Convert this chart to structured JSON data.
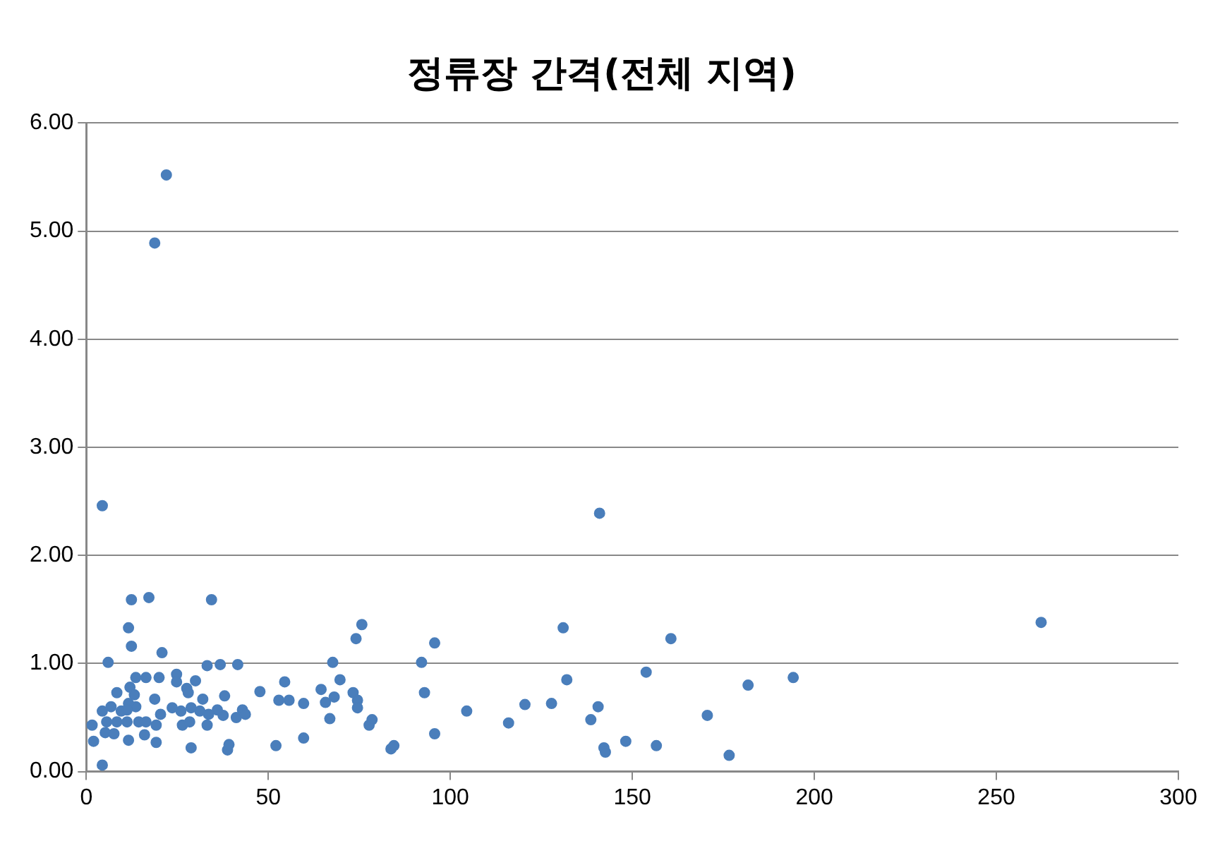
{
  "chart_data": {
    "type": "scatter",
    "title": "정류장 간격(전체 지역)",
    "xlim": [
      0,
      300
    ],
    "xticks": [
      0,
      50,
      100,
      150,
      200,
      250,
      300
    ],
    "ylim": [
      0,
      6
    ],
    "yticks": [
      {
        "value": 0,
        "label": "0.00"
      },
      {
        "value": 1,
        "label": "1.00"
      },
      {
        "value": 2,
        "label": "2.00"
      },
      {
        "value": 3,
        "label": "3.00"
      },
      {
        "value": 4,
        "label": "4.00"
      },
      {
        "value": 5,
        "label": "5.00"
      },
      {
        "value": 6,
        "label": "6.00"
      }
    ],
    "grid": "y",
    "legend": false,
    "marker": "circle",
    "series": [
      {
        "color": "#4a7ebb",
        "x": [
          22.0,
          18.8,
          4.4,
          141,
          262.3,
          12.4,
          17.2,
          34.4,
          11.6,
          12.4,
          20.8,
          6.0,
          33.2,
          36.8,
          41.6,
          54.5,
          47.7,
          52.9,
          38.0,
          30.0,
          24.8,
          24.8,
          20.0,
          16.4,
          13.6,
          12.0,
          8.4,
          1.6,
          4.4,
          2.0,
          11.6,
          16.0,
          19.2,
          28.8,
          38.8,
          39.2,
          52.1,
          27.6,
          28.0,
          32.0,
          37.6,
          36.0,
          42.9,
          43.7,
          41.2,
          31.2,
          28.8,
          26.0,
          23.6,
          20.4,
          18.8,
          19.2,
          13.6,
          11.6,
          9.6,
          6.8,
          4.4,
          5.6,
          8.4,
          11.2,
          14.4,
          16.4,
          5.2,
          7.6,
          13.2,
          26.4,
          28.4,
          33.6,
          33.2,
          11.2,
          55.7,
          59.7,
          59.7,
          64.5,
          65.7,
          68.1,
          67.7,
          69.7,
          66.9,
          73.3,
          74.5,
          74.5,
          75.7,
          74.1,
          77.7,
          78.5,
          83.7,
          84.5,
          92.1,
          92.9,
          95.7,
          95.7,
          104.5,
          131,
          160.6,
          116,
          120.5,
          127.8,
          132,
          140.6,
          138.6,
          142.2,
          142.6,
          148.2,
          156.6,
          153.8,
          170.6,
          176.6,
          181.8,
          194.2
        ],
        "values": [
          5.52,
          4.89,
          2.46,
          2.39,
          1.38,
          1.59,
          1.61,
          1.59,
          1.33,
          1.16,
          1.1,
          1.01,
          0.98,
          0.99,
          0.99,
          0.83,
          0.74,
          0.66,
          0.7,
          0.84,
          0.9,
          0.83,
          0.87,
          0.87,
          0.87,
          0.78,
          0.73,
          0.43,
          0.06,
          0.28,
          0.29,
          0.34,
          0.27,
          0.22,
          0.2,
          0.25,
          0.24,
          0.77,
          0.73,
          0.67,
          0.52,
          0.57,
          0.57,
          0.53,
          0.5,
          0.56,
          0.59,
          0.56,
          0.59,
          0.53,
          0.67,
          0.43,
          0.6,
          0.63,
          0.56,
          0.6,
          0.56,
          0.46,
          0.46,
          0.46,
          0.46,
          0.46,
          0.36,
          0.35,
          0.71,
          0.43,
          0.46,
          0.53,
          0.43,
          0.57,
          0.66,
          0.63,
          0.31,
          0.76,
          0.64,
          0.69,
          1.01,
          0.85,
          0.49,
          0.73,
          0.66,
          0.59,
          1.36,
          1.23,
          0.43,
          0.48,
          0.21,
          0.24,
          1.01,
          0.73,
          1.19,
          0.35,
          0.56,
          1.33,
          1.23,
          0.45,
          0.62,
          0.63,
          0.85,
          0.6,
          0.48,
          0.22,
          0.18,
          0.28,
          0.24,
          0.92,
          0.52,
          0.15,
          0.8,
          0.87
        ]
      }
    ]
  }
}
